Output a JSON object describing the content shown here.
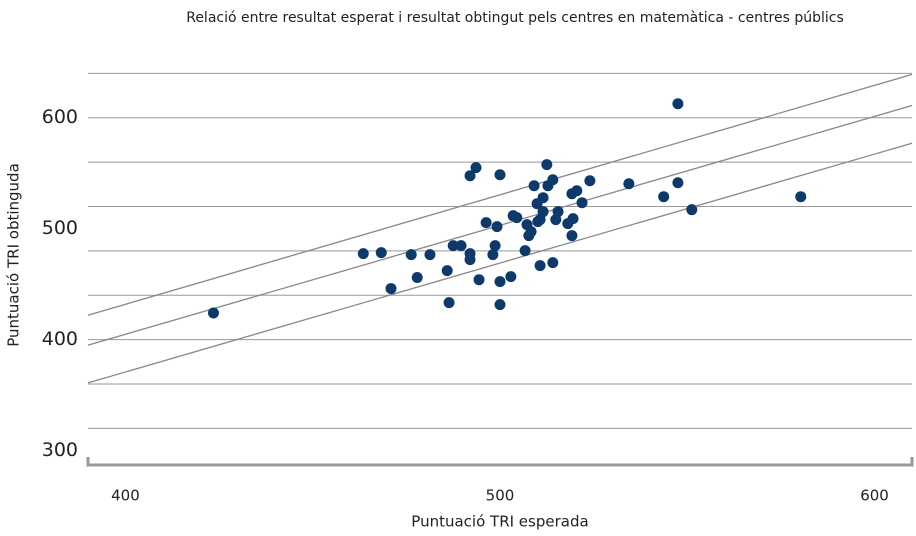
{
  "chart_data": {
    "type": "scatter",
    "title": "Relació entre resultat esperat i resultat obtingut pels centres en matemàtica - centres públics",
    "xlabel": "Puntuació TRI esperada",
    "ylabel": "Puntuació TRI obtinguda",
    "color": "#0d3a6b",
    "line_color": "#888888",
    "grid_color": "#999999",
    "xlim": [
      390,
      610
    ],
    "ylim": [
      287,
      652
    ],
    "xticks": [
      400,
      500,
      600
    ],
    "yticks": [
      300,
      400,
      500,
      600
    ],
    "grid_lines": [
      320,
      360,
      400,
      440,
      480,
      520,
      560,
      600,
      640
    ],
    "reference_lines": [
      {
        "x": [
          390,
          610
        ],
        "y": [
          422,
          639
        ]
      },
      {
        "x": [
          390,
          610
        ],
        "y": [
          395,
          611
        ]
      },
      {
        "x": [
          390,
          610
        ],
        "y": [
          361,
          577
        ]
      }
    ],
    "x": [
      423.5,
      463.5,
      468.3,
      470.9,
      476.3,
      477.9,
      481.3,
      485.9,
      486.4,
      487.5,
      489.6,
      492,
      492,
      492,
      493.6,
      494.4,
      496.3,
      498.1,
      498.7,
      499.2,
      500,
      500,
      500,
      502.9,
      503.5,
      504.5,
      506.7,
      507.2,
      507.7,
      508.3,
      509.1,
      509.9,
      510.1,
      510.7,
      510.7,
      511.5,
      511.5,
      512.5,
      512.8,
      514.1,
      514.1,
      514.9,
      515.5,
      518.1,
      519.2,
      519.5,
      519.2,
      520.5,
      521.9,
      524,
      534.4,
      543.7,
      547.5,
      547.5,
      551.2,
      580.3
    ],
    "values": [
      424,
      477.5,
      478.4,
      446,
      476.6,
      456,
      476.6,
      462.2,
      433.3,
      484.7,
      484.7,
      477.5,
      472.1,
      547.7,
      555,
      454,
      505.4,
      476.6,
      484.7,
      501.8,
      548.6,
      452.3,
      431.5,
      456.8,
      511.7,
      509.9,
      480.2,
      503.6,
      493.7,
      497.3,
      538.7,
      522.5,
      506.3,
      508.1,
      466.7,
      515.3,
      527.9,
      557.7,
      538.7,
      544.1,
      469.4,
      508.1,
      515.3,
      504.5,
      493.7,
      509,
      531.5,
      534.2,
      523.4,
      543.2,
      540.5,
      528.8,
      612.6,
      541.4,
      517.1,
      528.8
    ]
  }
}
